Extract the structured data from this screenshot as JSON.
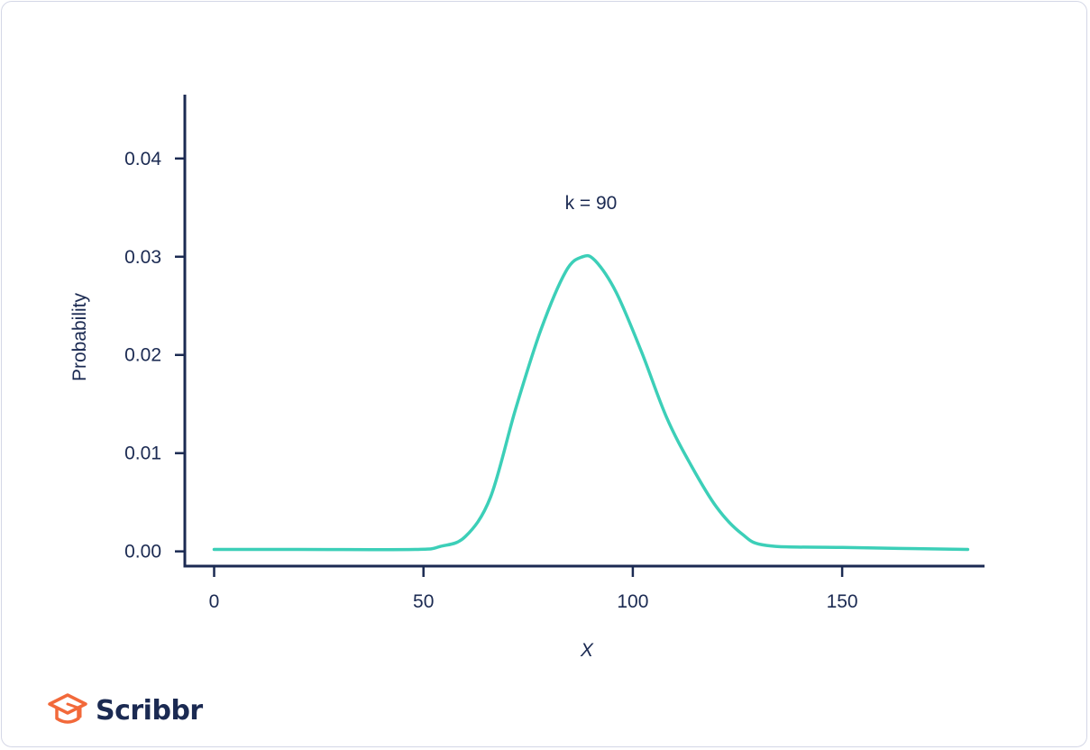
{
  "colors": {
    "axis": "#1b2a52",
    "curve": "#3ccfb8",
    "text": "#1b2a52",
    "logo_icon": "#f2693a"
  },
  "brand": {
    "name": "Scribbr",
    "icon": "graduation-cap-icon"
  },
  "chart_data": {
    "type": "line",
    "xlabel": "X",
    "ylabel": "Probability",
    "xlim": [
      -7,
      184
    ],
    "ylim": [
      -0.0015,
      0.0465
    ],
    "xticks": [
      0,
      50,
      100,
      150
    ],
    "xtick_labels": [
      "0",
      "50",
      "100",
      "150"
    ],
    "yticks": [
      0.0,
      0.01,
      0.02,
      0.03,
      0.04
    ],
    "ytick_labels": [
      "0.00",
      "0.01",
      "0.02",
      "0.03",
      "0.04"
    ],
    "grid": false,
    "annotations": [
      {
        "text": "k = 90",
        "x": 90,
        "y": 0.0355
      }
    ],
    "series": [
      {
        "x": [
          0,
          20,
          48,
          54,
          60,
          66,
          72,
          78,
          84,
          88,
          91,
          96,
          102,
          108,
          114,
          120,
          126,
          132,
          150,
          180
        ],
        "y": [
          0.0002,
          0.0002,
          0.0002,
          0.0005,
          0.0015,
          0.0055,
          0.0145,
          0.0225,
          0.0285,
          0.03,
          0.0296,
          0.0264,
          0.0204,
          0.0137,
          0.0087,
          0.0045,
          0.0018,
          0.0006,
          0.0004,
          0.0002
        ]
      }
    ]
  }
}
